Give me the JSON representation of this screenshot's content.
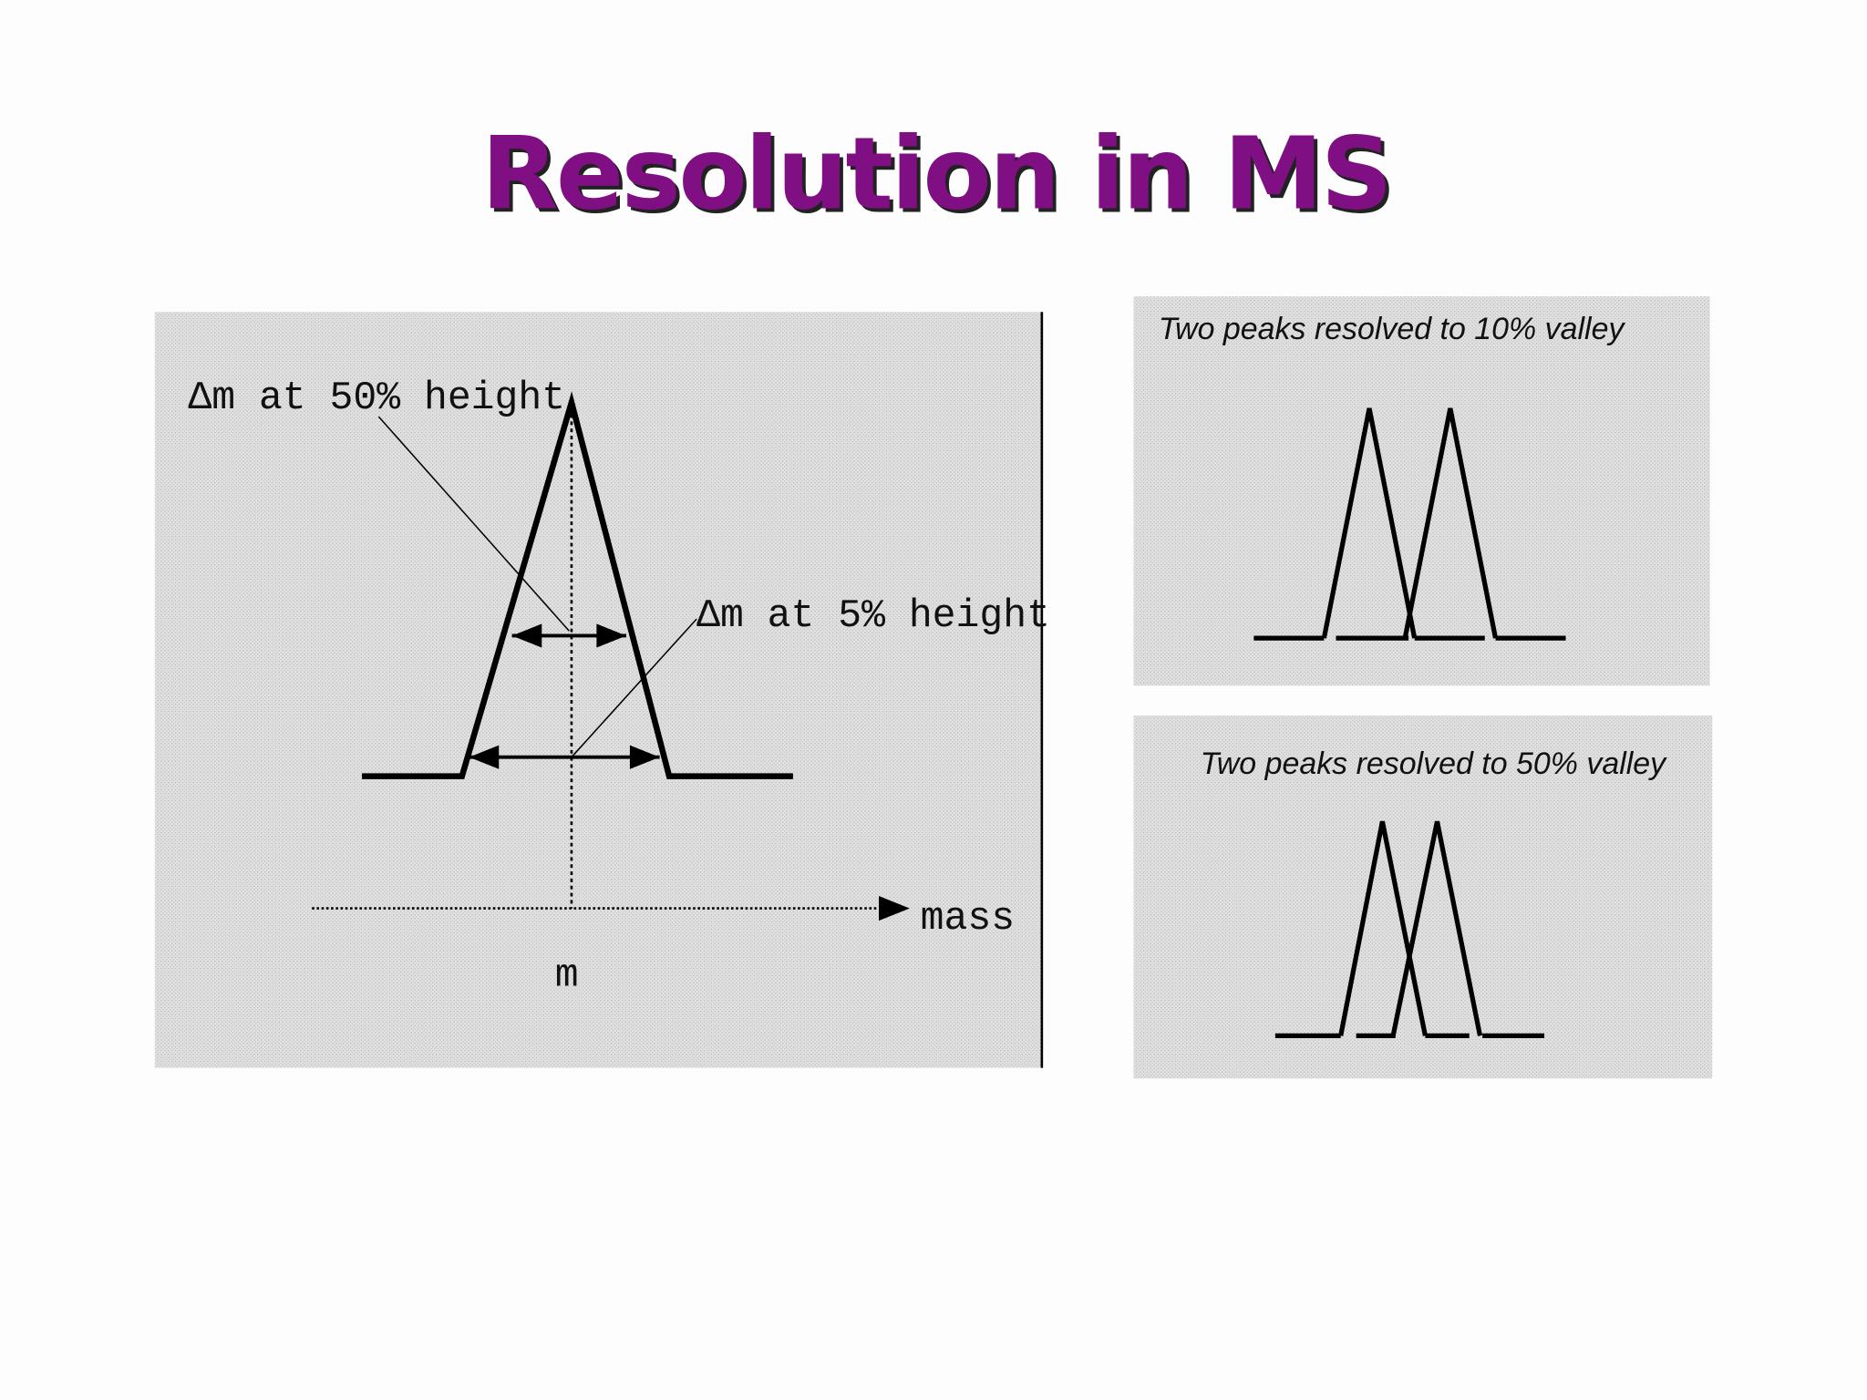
{
  "header": {
    "title": "Resolution in MS"
  },
  "main_figure": {
    "label_50": "Δm at 50% height",
    "label_5": "Δm at 5% height",
    "axis_label": "mass",
    "peak_label": "m"
  },
  "panels": [
    {
      "caption": "Two peaks resolved to 10% valley"
    },
    {
      "caption": "Two peaks resolved to 50% valley"
    }
  ]
}
